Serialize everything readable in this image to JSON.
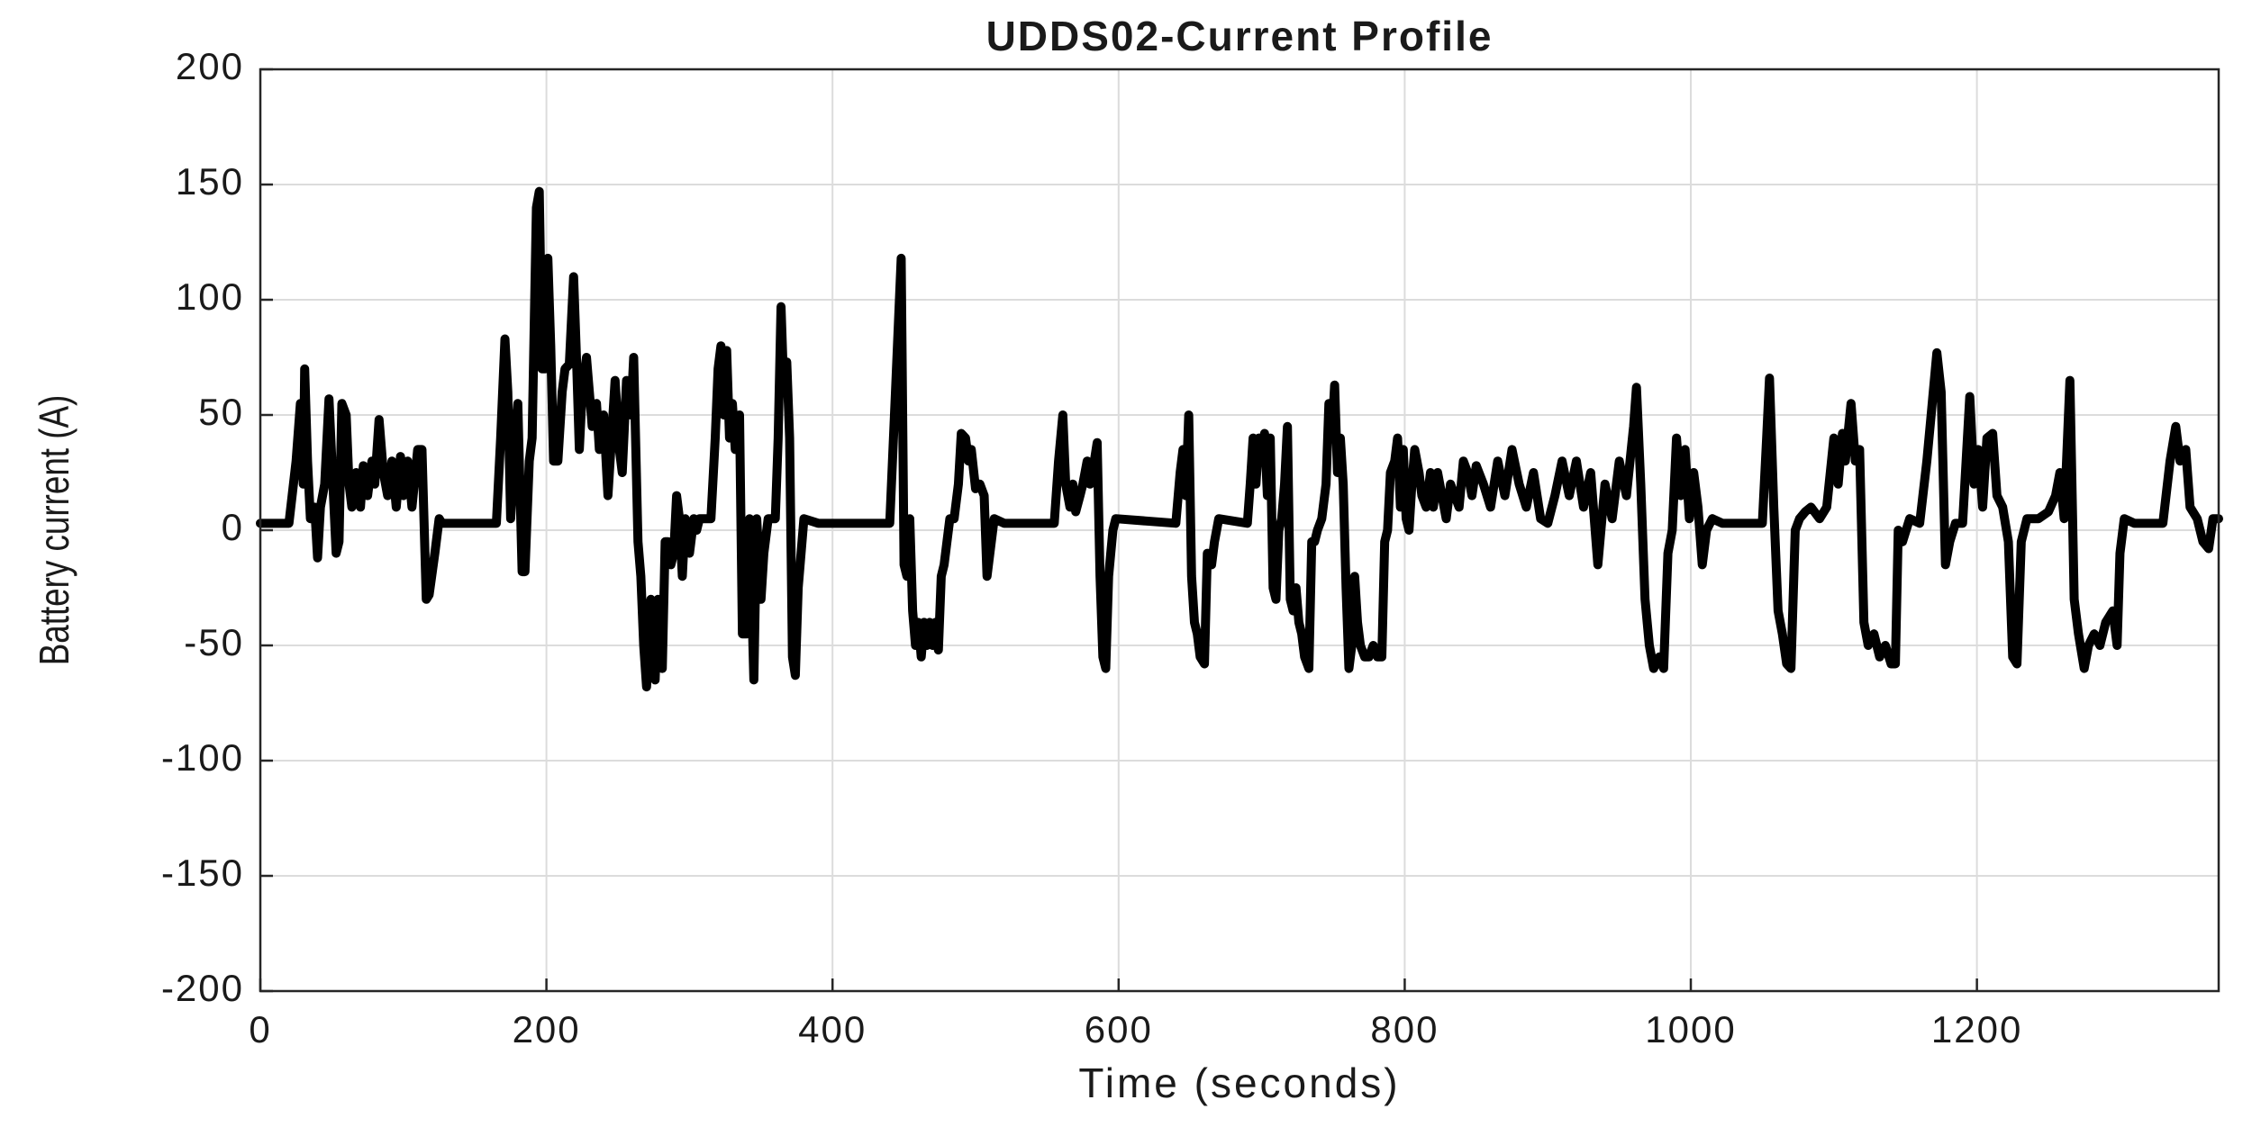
{
  "chart_data": {
    "type": "line",
    "title": "UDDS02-Current Profile",
    "xlabel": "Time (seconds)",
    "ylabel": "Battery current (A)",
    "color": "#000000",
    "grid": true,
    "xlim": [
      0,
      1369
    ],
    "ylim": [
      -200,
      200
    ],
    "xticks": [
      0,
      200,
      400,
      600,
      800,
      1000,
      1200
    ],
    "yticks": [
      -200,
      -150,
      -100,
      -50,
      0,
      50,
      100,
      150,
      200
    ],
    "x": [
      0,
      20,
      25,
      28,
      30,
      31,
      33,
      35,
      38,
      40,
      42,
      45,
      48,
      50,
      53,
      55,
      57,
      60,
      62,
      64,
      67,
      70,
      72,
      75,
      78,
      80,
      83,
      86,
      89,
      92,
      95,
      98,
      100,
      103,
      106,
      110,
      113,
      116,
      118,
      122,
      125,
      127,
      165,
      168,
      171,
      173,
      175,
      178,
      180,
      183,
      185,
      188,
      190,
      193,
      195,
      197,
      199,
      201,
      203,
      205,
      208,
      211,
      213,
      216,
      219,
      221,
      223,
      225,
      228,
      230,
      232,
      235,
      237,
      240,
      243,
      246,
      248,
      251,
      253,
      256,
      259,
      261,
      264,
      266,
      268,
      270,
      273,
      276,
      278,
      281,
      283,
      285,
      287,
      289,
      291,
      293,
      295,
      297,
      300,
      303,
      305,
      307,
      315,
      318,
      320,
      322,
      324,
      326,
      328,
      330,
      332,
      335,
      337,
      340,
      342,
      345,
      347,
      350,
      352,
      355,
      360,
      362,
      364,
      366,
      368,
      370,
      372,
      374,
      376,
      378,
      380,
      390,
      440,
      444,
      448,
      450,
      452,
      454,
      456,
      458,
      460,
      462,
      464,
      466,
      468,
      470,
      472,
      474,
      476,
      478,
      480,
      482,
      485,
      488,
      490,
      493,
      495,
      497,
      500,
      503,
      506,
      508,
      511,
      513,
      520,
      555,
      558,
      561,
      563,
      566,
      568,
      570,
      573,
      575,
      578,
      580,
      583,
      585,
      587,
      589,
      591,
      593,
      596,
      598,
      640,
      643,
      645,
      647,
      649,
      651,
      653,
      655,
      657,
      660,
      662,
      665,
      667,
      670,
      690,
      692,
      694,
      696,
      698,
      700,
      702,
      704,
      706,
      708,
      710,
      712,
      714,
      716,
      718,
      720,
      722,
      724,
      726,
      728,
      730,
      733,
      735,
      737,
      739,
      742,
      745,
      747,
      749,
      751,
      753,
      755,
      757,
      759,
      761,
      763,
      765,
      767,
      769,
      772,
      775,
      778,
      781,
      784,
      786,
      788,
      790,
      793,
      795,
      797,
      799,
      801,
      803,
      805,
      807,
      810,
      812,
      815,
      818,
      820,
      823,
      826,
      829,
      832,
      835,
      838,
      841,
      844,
      847,
      850,
      855,
      860,
      865,
      870,
      875,
      880,
      885,
      890,
      895,
      900,
      905,
      910,
      915,
      920,
      925,
      930,
      935,
      940,
      945,
      950,
      955,
      960,
      962,
      965,
      968,
      971,
      974,
      978,
      981,
      984,
      987,
      990,
      993,
      996,
      999,
      1002,
      1005,
      1008,
      1011,
      1015,
      1022,
      1050,
      1053,
      1055,
      1058,
      1061,
      1064,
      1067,
      1070,
      1073,
      1076,
      1080,
      1084,
      1090,
      1095,
      1100,
      1103,
      1106,
      1108,
      1112,
      1115,
      1118,
      1121,
      1124,
      1128,
      1132,
      1136,
      1140,
      1143,
      1145,
      1148,
      1153,
      1160,
      1165,
      1168,
      1172,
      1175,
      1178,
      1181,
      1185,
      1190,
      1195,
      1198,
      1201,
      1204,
      1207,
      1211,
      1214,
      1218,
      1222,
      1225,
      1228,
      1231,
      1235,
      1243,
      1250,
      1255,
      1258,
      1261,
      1265,
      1268,
      1271,
      1275,
      1278,
      1282,
      1286,
      1290,
      1295,
      1298,
      1300,
      1303,
      1310,
      1330,
      1335,
      1339,
      1342,
      1346,
      1349,
      1354,
      1358,
      1362,
      1365,
      1369
    ],
    "values": [
      3,
      3,
      30,
      55,
      20,
      70,
      30,
      5,
      10,
      -12,
      10,
      20,
      57,
      30,
      -10,
      -5,
      55,
      50,
      20,
      10,
      25,
      10,
      28,
      15,
      30,
      20,
      48,
      25,
      15,
      30,
      10,
      32,
      15,
      30,
      10,
      35,
      35,
      -30,
      -28,
      -10,
      5,
      3,
      3,
      40,
      83,
      60,
      5,
      40,
      55,
      -18,
      -18,
      30,
      40,
      140,
      147,
      70,
      70,
      118,
      80,
      30,
      30,
      60,
      70,
      72,
      110,
      75,
      35,
      60,
      75,
      60,
      45,
      55,
      35,
      50,
      15,
      45,
      65,
      35,
      25,
      65,
      50,
      75,
      -5,
      -20,
      -50,
      -68,
      -30,
      -65,
      -30,
      -60,
      -5,
      -5,
      -15,
      -10,
      15,
      5,
      -20,
      5,
      -10,
      5,
      0,
      5,
      5,
      40,
      70,
      80,
      50,
      78,
      40,
      55,
      35,
      50,
      -45,
      -45,
      5,
      -65,
      5,
      -30,
      -10,
      5,
      5,
      40,
      97,
      60,
      73,
      40,
      -55,
      -63,
      -25,
      -10,
      5,
      3,
      3,
      60,
      118,
      -15,
      -20,
      5,
      -35,
      -50,
      -40,
      -55,
      -40,
      -50,
      -40,
      -50,
      -40,
      -52,
      -20,
      -15,
      -5,
      5,
      5,
      20,
      42,
      40,
      30,
      35,
      18,
      20,
      15,
      -20,
      -5,
      5,
      3,
      3,
      30,
      50,
      20,
      10,
      20,
      8,
      15,
      20,
      30,
      20,
      30,
      38,
      -20,
      -55,
      -60,
      -20,
      0,
      5,
      3,
      25,
      35,
      15,
      50,
      -20,
      -40,
      -45,
      -55,
      -58,
      -10,
      -15,
      -5,
      5,
      3,
      20,
      40,
      20,
      40,
      30,
      42,
      15,
      40,
      -25,
      -30,
      0,
      5,
      20,
      45,
      -30,
      -35,
      -25,
      -40,
      -45,
      -55,
      -60,
      -5,
      -5,
      0,
      5,
      20,
      55,
      40,
      63,
      25,
      40,
      20,
      -25,
      -60,
      -50,
      -20,
      -40,
      -50,
      -55,
      -55,
      -50,
      -55,
      -55,
      -5,
      0,
      25,
      30,
      40,
      10,
      35,
      5,
      0,
      20,
      35,
      25,
      15,
      10,
      25,
      10,
      25,
      15,
      5,
      20,
      15,
      10,
      30,
      25,
      15,
      28,
      20,
      10,
      30,
      15,
      35,
      20,
      10,
      25,
      5,
      3,
      15,
      30,
      15,
      30,
      10,
      25,
      -15,
      20,
      5,
      30,
      15,
      45,
      62,
      20,
      -30,
      -50,
      -60,
      -55,
      -60,
      -10,
      0,
      40,
      15,
      35,
      5,
      25,
      10,
      -15,
      0,
      5,
      3,
      3,
      40,
      66,
      10,
      -35,
      -45,
      -58,
      -60,
      0,
      5,
      8,
      10,
      5,
      10,
      40,
      20,
      42,
      30,
      55,
      30,
      35,
      -40,
      -50,
      -45,
      -55,
      -50,
      -58,
      -58,
      0,
      -5,
      5,
      3,
      30,
      50,
      77,
      60,
      -15,
      -5,
      3,
      3,
      58,
      20,
      35,
      10,
      40,
      42,
      15,
      10,
      -5,
      -55,
      -58,
      -5,
      5,
      5,
      8,
      15,
      25,
      5,
      65,
      -30,
      -45,
      -60,
      -50,
      -45,
      -50,
      -40,
      -35,
      -50,
      -10,
      5,
      3,
      3,
      30,
      45,
      30,
      35,
      10,
      5,
      -5,
      -8,
      5,
      5
    ]
  }
}
